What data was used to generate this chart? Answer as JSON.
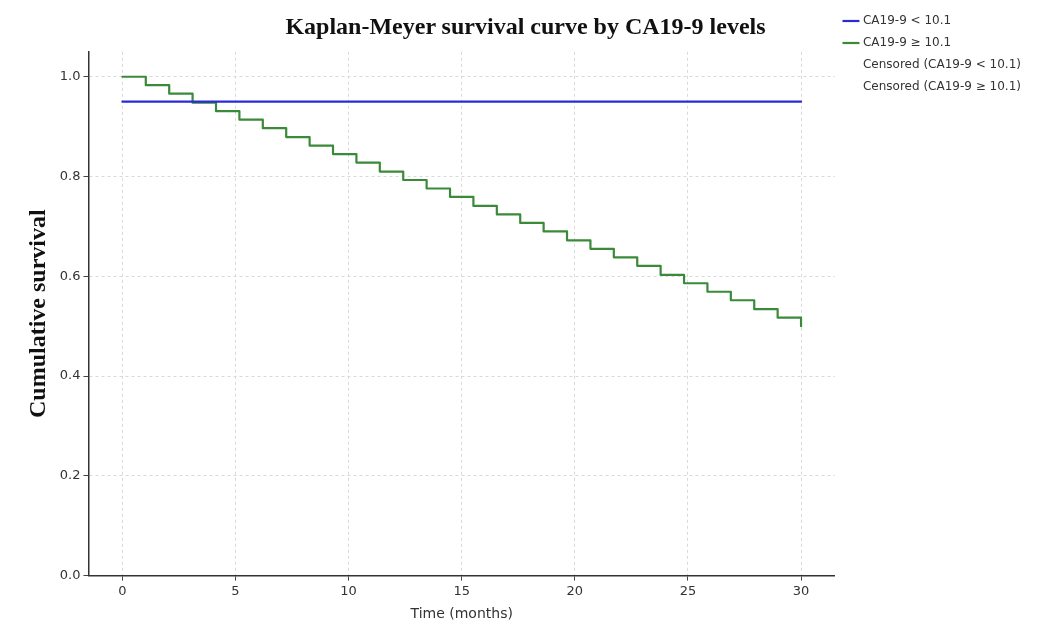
{
  "chart_data": {
    "type": "step",
    "title": "Kaplan-Meyer survival curve by CA19-9 levels",
    "xlabel": "Time (months)",
    "ylabel": "Cumulative survival",
    "xlim": [
      -1.5,
      31.5
    ],
    "xticks": [
      0,
      5,
      10,
      15,
      20,
      25,
      30
    ],
    "ylim": [
      0,
      1.05
    ],
    "yticks": [
      {
        "value": 0,
        "label": "0.0"
      },
      0.2,
      0.4,
      0.6,
      0.8,
      {
        "value": 1,
        "label": "1.0"
      }
    ],
    "grid": true,
    "legend": "top right",
    "marker": "none",
    "line_style": "solid",
    "series": [
      {
        "name": "CA19-9 < 10.1",
        "color": "#2b2bd6",
        "x": [
          0,
          30
        ],
        "values": [
          0.95,
          0.95
        ]
      },
      {
        "name": "CA19-9 ≥ 10.1",
        "color": "#3a8a3a",
        "x": [
          0,
          1.034,
          2.069,
          3.103,
          4.138,
          5.172,
          6.207,
          7.241,
          8.276,
          9.31,
          10.345,
          11.379,
          12.414,
          13.448,
          14.483,
          15.517,
          16.552,
          17.586,
          18.621,
          19.655,
          20.69,
          21.724,
          22.759,
          23.793,
          24.828,
          25.862,
          26.897,
          27.931,
          28.966,
          30
        ],
        "values": [
          1,
          0.983,
          0.966,
          0.948,
          0.931,
          0.914,
          0.897,
          0.879,
          0.862,
          0.845,
          0.828,
          0.81,
          0.793,
          0.776,
          0.759,
          0.741,
          0.724,
          0.707,
          0.69,
          0.672,
          0.655,
          0.638,
          0.621,
          0.603,
          0.586,
          0.569,
          0.552,
          0.534,
          0.517,
          0.5
        ]
      },
      {
        "name": "Censored (CA19-9 < 10.1)",
        "type": "scatter"
      },
      {
        "name": "Censored (CA19-9 ≥ 10.1)",
        "type": "scatter"
      }
    ]
  }
}
